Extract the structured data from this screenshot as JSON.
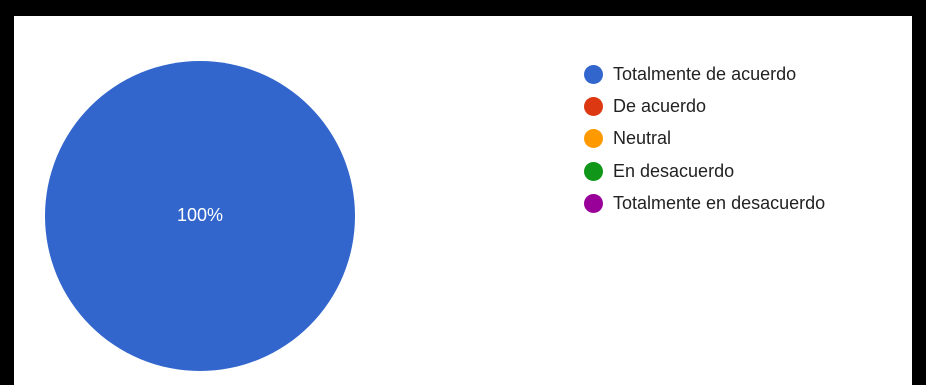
{
  "chart_data": {
    "type": "pie",
    "title": "",
    "categories": [
      "Totalmente de acuerdo",
      "De acuerdo",
      "Neutral",
      "En desacuerdo",
      "Totalmente en desacuerdo"
    ],
    "values": [
      100,
      0,
      0,
      0,
      0
    ],
    "colors": [
      "#3366cc",
      "#dc3912",
      "#ff9900",
      "#109618",
      "#990099"
    ],
    "slice_labels": [
      "100%",
      "",
      "",
      "",
      ""
    ],
    "legend": "right",
    "label_color": "#ffffff"
  }
}
